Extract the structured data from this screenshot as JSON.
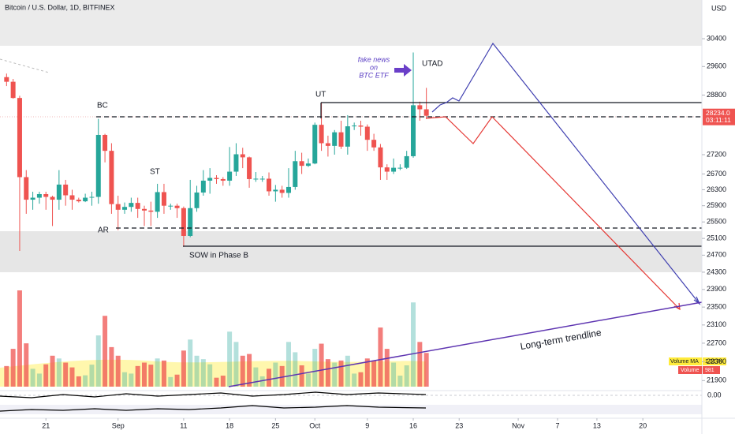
{
  "chart_data": {
    "type": "candlestick",
    "title": "Bitcoin / U.S. Dollar, 1D, BITFINEX",
    "currency": "USD",
    "log_scale": true,
    "ylim": [
      21740,
      31550
    ],
    "yticks": [
      30400,
      29600,
      28800,
      27200,
      26700,
      26300,
      25900,
      25500,
      25100,
      24700,
      24300,
      23900,
      23500,
      23100,
      22700,
      22300,
      21900
    ],
    "xlim": [
      "08-14",
      "11-29"
    ],
    "xticks": [
      {
        "value": "08-21",
        "label": "21"
      },
      {
        "value": "09-01",
        "label": "Sep"
      },
      {
        "value": "09-11",
        "label": "11"
      },
      {
        "value": "09-18",
        "label": "18"
      },
      {
        "value": "09-25",
        "label": "25"
      },
      {
        "value": "10-01",
        "label": "Oct"
      },
      {
        "value": "10-09",
        "label": "9"
      },
      {
        "value": "10-16",
        "label": "16"
      },
      {
        "value": "10-23",
        "label": "23"
      },
      {
        "value": "11-01",
        "label": "Nov"
      },
      {
        "value": "11-07",
        "label": "7"
      },
      {
        "value": "11-13",
        "label": "13"
      },
      {
        "value": "11-20",
        "label": "20"
      }
    ],
    "up_color": "#26a69a",
    "down_color": "#ef5350",
    "x": [
      "08-15",
      "08-16",
      "08-17",
      "08-18",
      "08-19",
      "08-20",
      "08-21",
      "08-22",
      "08-23",
      "08-24",
      "08-25",
      "08-26",
      "08-27",
      "08-28",
      "08-29",
      "08-30",
      "08-31",
      "09-01",
      "09-02",
      "09-03",
      "09-04",
      "09-05",
      "09-06",
      "09-07",
      "09-08",
      "09-09",
      "09-10",
      "09-11",
      "09-12",
      "09-13",
      "09-14",
      "09-15",
      "09-16",
      "09-17",
      "09-18",
      "09-19",
      "09-20",
      "09-21",
      "09-22",
      "09-23",
      "09-24",
      "09-25",
      "09-26",
      "09-27",
      "09-28",
      "09-29",
      "09-30",
      "10-01",
      "10-02",
      "10-03",
      "10-04",
      "10-05",
      "10-06",
      "10-07",
      "10-08",
      "10-09",
      "10-10",
      "10-11",
      "10-12",
      "10-13",
      "10-14",
      "10-15",
      "10-16",
      "10-17",
      "10-18"
    ],
    "open": [
      29300,
      29170,
      28720,
      26620,
      26050,
      26100,
      26190,
      26120,
      26050,
      26430,
      26160,
      26050,
      26010,
      26100,
      26120,
      27720,
      27300,
      25940,
      25800,
      25870,
      25970,
      25820,
      25780,
      25750,
      26240,
      25900,
      25900,
      25840,
      25160,
      25840,
      26230,
      26530,
      26600,
      26570,
      26530,
      26760,
      27210,
      27130,
      26570,
      26580,
      26580,
      26260,
      26300,
      26220,
      26370,
      27030,
      26910,
      26970,
      27990,
      27500,
      27430,
      27790,
      27410,
      27950,
      27970,
      27940,
      27590,
      27390,
      26870,
      26760,
      26860,
      26860,
      27160,
      28520,
      28410
    ],
    "high": [
      29400,
      29250,
      28780,
      26800,
      26250,
      26250,
      26250,
      26150,
      26800,
      26550,
      26300,
      26100,
      26200,
      26250,
      28150,
      27750,
      27500,
      26150,
      25980,
      26100,
      26100,
      25900,
      26000,
      26450,
      26450,
      25950,
      25950,
      25880,
      26550,
      26400,
      26800,
      26850,
      26670,
      26620,
      27400,
      27500,
      27380,
      27150,
      26750,
      26650,
      26740,
      26420,
      26400,
      26850,
      27300,
      27250,
      27100,
      28050,
      28600,
      27700,
      27850,
      28100,
      28250,
      28050,
      28100,
      28000,
      27750,
      27480,
      26950,
      27100,
      26950,
      27300,
      30000,
      28620,
      29000
    ],
    "low": [
      29050,
      28700,
      24800,
      25700,
      25800,
      25950,
      25800,
      25400,
      25800,
      25900,
      25800,
      25980,
      25990,
      25900,
      25950,
      27000,
      25700,
      25300,
      25700,
      25750,
      25600,
      25400,
      25400,
      25600,
      25700,
      25800,
      25600,
      24900,
      25130,
      25750,
      26150,
      26200,
      26450,
      26400,
      26400,
      26650,
      26850,
      26350,
      26500,
      26500,
      26150,
      26000,
      26100,
      26100,
      26300,
      26700,
      26880,
      26950,
      27300,
      27150,
      27200,
      27350,
      27200,
      27850,
      27700,
      27300,
      27300,
      26550,
      26550,
      26700,
      26800,
      26830,
      27120,
      28100,
      28150
    ],
    "close": [
      29170,
      28720,
      26620,
      26050,
      26100,
      26190,
      26120,
      26050,
      26430,
      26160,
      26050,
      26010,
      26100,
      26120,
      27720,
      27300,
      25940,
      25800,
      25870,
      25970,
      25820,
      25780,
      25750,
      26240,
      25900,
      25900,
      25840,
      25160,
      25840,
      26230,
      26530,
      26600,
      26570,
      26530,
      26760,
      27210,
      27130,
      26570,
      26580,
      26580,
      26260,
      26300,
      26220,
      26370,
      27030,
      26910,
      26970,
      27990,
      27500,
      27430,
      27790,
      27410,
      27950,
      27970,
      27940,
      27590,
      27390,
      26870,
      26760,
      26860,
      26860,
      27160,
      28520,
      28410,
      28234
    ],
    "volume": [
      600,
      1100,
      2800,
      1260,
      520,
      380,
      650,
      900,
      820,
      700,
      560,
      300,
      330,
      640,
      1490,
      2060,
      1150,
      900,
      420,
      380,
      600,
      700,
      640,
      820,
      760,
      280,
      350,
      1050,
      1370,
      900,
      800,
      650,
      260,
      320,
      1600,
      1300,
      900,
      950,
      560,
      300,
      520,
      700,
      600,
      1300,
      1000,
      620,
      380,
      1100,
      1250,
      800,
      700,
      760,
      900,
      380,
      420,
      820,
      760,
      1720,
      1100,
      700,
      320,
      620,
      2450,
      1300,
      981
    ],
    "last_price": 28234,
    "last_price_label": "28234.0",
    "countdown": "03:11:11",
    "legend": {
      "volume_ma": {
        "name": "Volume MA",
        "value": 1317,
        "label": "1.317K"
      },
      "volume": {
        "name": "Volume",
        "value": 981
      }
    },
    "annotations": [
      "BC",
      "ST",
      "AR",
      "UT",
      "UTAD",
      "SOW in Phase B",
      "Long-term trendline"
    ],
    "news_note": [
      "fake news",
      "on",
      "BTC ETF"
    ],
    "indicator_ticks": [
      {
        "value": 0,
        "label": "0.00"
      }
    ]
  }
}
